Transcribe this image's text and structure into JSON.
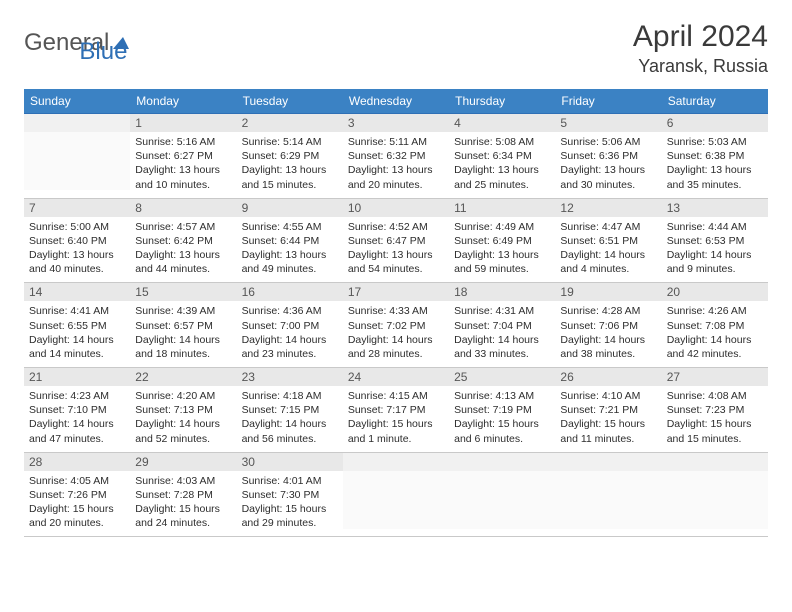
{
  "brand": {
    "part1": "General",
    "part2": "Blue"
  },
  "title": "April 2024",
  "location": "Yaransk, Russia",
  "colors": {
    "header_bg": "#3b82c4",
    "header_text": "#ffffff",
    "row_top_border": "#2e6fb5",
    "row_bottom_border": "#c9c9c9",
    "daynum_bg": "#e8e8e8",
    "daynum_text": "#565656",
    "body_text": "#2d2d2d",
    "logo_gray": "#555555",
    "logo_blue": "#2e6fb5"
  },
  "day_names": [
    "Sunday",
    "Monday",
    "Tuesday",
    "Wednesday",
    "Thursday",
    "Friday",
    "Saturday"
  ],
  "weeks": [
    [
      {
        "n": "",
        "sr": "",
        "ss": "",
        "dl": "",
        "empty": true
      },
      {
        "n": "1",
        "sr": "Sunrise: 5:16 AM",
        "ss": "Sunset: 6:27 PM",
        "dl": "Daylight: 13 hours and 10 minutes."
      },
      {
        "n": "2",
        "sr": "Sunrise: 5:14 AM",
        "ss": "Sunset: 6:29 PM",
        "dl": "Daylight: 13 hours and 15 minutes."
      },
      {
        "n": "3",
        "sr": "Sunrise: 5:11 AM",
        "ss": "Sunset: 6:32 PM",
        "dl": "Daylight: 13 hours and 20 minutes."
      },
      {
        "n": "4",
        "sr": "Sunrise: 5:08 AM",
        "ss": "Sunset: 6:34 PM",
        "dl": "Daylight: 13 hours and 25 minutes."
      },
      {
        "n": "5",
        "sr": "Sunrise: 5:06 AM",
        "ss": "Sunset: 6:36 PM",
        "dl": "Daylight: 13 hours and 30 minutes."
      },
      {
        "n": "6",
        "sr": "Sunrise: 5:03 AM",
        "ss": "Sunset: 6:38 PM",
        "dl": "Daylight: 13 hours and 35 minutes."
      }
    ],
    [
      {
        "n": "7",
        "sr": "Sunrise: 5:00 AM",
        "ss": "Sunset: 6:40 PM",
        "dl": "Daylight: 13 hours and 40 minutes."
      },
      {
        "n": "8",
        "sr": "Sunrise: 4:57 AM",
        "ss": "Sunset: 6:42 PM",
        "dl": "Daylight: 13 hours and 44 minutes."
      },
      {
        "n": "9",
        "sr": "Sunrise: 4:55 AM",
        "ss": "Sunset: 6:44 PM",
        "dl": "Daylight: 13 hours and 49 minutes."
      },
      {
        "n": "10",
        "sr": "Sunrise: 4:52 AM",
        "ss": "Sunset: 6:47 PM",
        "dl": "Daylight: 13 hours and 54 minutes."
      },
      {
        "n": "11",
        "sr": "Sunrise: 4:49 AM",
        "ss": "Sunset: 6:49 PM",
        "dl": "Daylight: 13 hours and 59 minutes."
      },
      {
        "n": "12",
        "sr": "Sunrise: 4:47 AM",
        "ss": "Sunset: 6:51 PM",
        "dl": "Daylight: 14 hours and 4 minutes."
      },
      {
        "n": "13",
        "sr": "Sunrise: 4:44 AM",
        "ss": "Sunset: 6:53 PM",
        "dl": "Daylight: 14 hours and 9 minutes."
      }
    ],
    [
      {
        "n": "14",
        "sr": "Sunrise: 4:41 AM",
        "ss": "Sunset: 6:55 PM",
        "dl": "Daylight: 14 hours and 14 minutes."
      },
      {
        "n": "15",
        "sr": "Sunrise: 4:39 AM",
        "ss": "Sunset: 6:57 PM",
        "dl": "Daylight: 14 hours and 18 minutes."
      },
      {
        "n": "16",
        "sr": "Sunrise: 4:36 AM",
        "ss": "Sunset: 7:00 PM",
        "dl": "Daylight: 14 hours and 23 minutes."
      },
      {
        "n": "17",
        "sr": "Sunrise: 4:33 AM",
        "ss": "Sunset: 7:02 PM",
        "dl": "Daylight: 14 hours and 28 minutes."
      },
      {
        "n": "18",
        "sr": "Sunrise: 4:31 AM",
        "ss": "Sunset: 7:04 PM",
        "dl": "Daylight: 14 hours and 33 minutes."
      },
      {
        "n": "19",
        "sr": "Sunrise: 4:28 AM",
        "ss": "Sunset: 7:06 PM",
        "dl": "Daylight: 14 hours and 38 minutes."
      },
      {
        "n": "20",
        "sr": "Sunrise: 4:26 AM",
        "ss": "Sunset: 7:08 PM",
        "dl": "Daylight: 14 hours and 42 minutes."
      }
    ],
    [
      {
        "n": "21",
        "sr": "Sunrise: 4:23 AM",
        "ss": "Sunset: 7:10 PM",
        "dl": "Daylight: 14 hours and 47 minutes."
      },
      {
        "n": "22",
        "sr": "Sunrise: 4:20 AM",
        "ss": "Sunset: 7:13 PM",
        "dl": "Daylight: 14 hours and 52 minutes."
      },
      {
        "n": "23",
        "sr": "Sunrise: 4:18 AM",
        "ss": "Sunset: 7:15 PM",
        "dl": "Daylight: 14 hours and 56 minutes."
      },
      {
        "n": "24",
        "sr": "Sunrise: 4:15 AM",
        "ss": "Sunset: 7:17 PM",
        "dl": "Daylight: 15 hours and 1 minute."
      },
      {
        "n": "25",
        "sr": "Sunrise: 4:13 AM",
        "ss": "Sunset: 7:19 PM",
        "dl": "Daylight: 15 hours and 6 minutes."
      },
      {
        "n": "26",
        "sr": "Sunrise: 4:10 AM",
        "ss": "Sunset: 7:21 PM",
        "dl": "Daylight: 15 hours and 11 minutes."
      },
      {
        "n": "27",
        "sr": "Sunrise: 4:08 AM",
        "ss": "Sunset: 7:23 PM",
        "dl": "Daylight: 15 hours and 15 minutes."
      }
    ],
    [
      {
        "n": "28",
        "sr": "Sunrise: 4:05 AM",
        "ss": "Sunset: 7:26 PM",
        "dl": "Daylight: 15 hours and 20 minutes."
      },
      {
        "n": "29",
        "sr": "Sunrise: 4:03 AM",
        "ss": "Sunset: 7:28 PM",
        "dl": "Daylight: 15 hours and 24 minutes."
      },
      {
        "n": "30",
        "sr": "Sunrise: 4:01 AM",
        "ss": "Sunset: 7:30 PM",
        "dl": "Daylight: 15 hours and 29 minutes."
      },
      {
        "n": "",
        "sr": "",
        "ss": "",
        "dl": "",
        "empty": true
      },
      {
        "n": "",
        "sr": "",
        "ss": "",
        "dl": "",
        "empty": true
      },
      {
        "n": "",
        "sr": "",
        "ss": "",
        "dl": "",
        "empty": true
      },
      {
        "n": "",
        "sr": "",
        "ss": "",
        "dl": "",
        "empty": true
      }
    ]
  ]
}
